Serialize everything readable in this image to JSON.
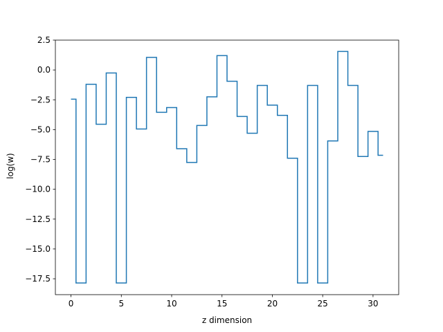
{
  "chart_data": {
    "type": "line",
    "drawstyle": "steps-mid",
    "title": "",
    "xlabel": "z dimension",
    "ylabel": "log(w)",
    "xlim": [
      -1.55,
      32.55
    ],
    "ylim": [
      -18.83,
      2.5
    ],
    "xticks": [
      0,
      5,
      10,
      15,
      20,
      25,
      30
    ],
    "yticks": [
      2.5,
      0.0,
      -2.5,
      -5.0,
      -7.5,
      -10.0,
      -12.5,
      -15.0,
      -17.5
    ],
    "grid": false,
    "legend": "none",
    "colors": {
      "series": "#1f77b4",
      "axes": "#000000",
      "background": "#ffffff"
    },
    "series": [
      {
        "x": [
          0,
          1,
          2,
          3,
          4,
          5,
          6,
          7,
          8,
          9,
          10,
          11,
          12,
          13,
          14,
          15,
          16,
          17,
          18,
          19,
          20,
          21,
          22,
          23,
          24,
          25,
          26,
          27,
          28,
          29,
          30,
          31
        ],
        "values": [
          -2.45,
          -17.85,
          -1.2,
          -4.55,
          -0.25,
          -17.85,
          -2.3,
          -4.95,
          1.05,
          -3.55,
          -3.15,
          -6.6,
          -7.75,
          -4.65,
          -2.25,
          1.2,
          -0.95,
          -3.9,
          -5.3,
          -1.3,
          -2.95,
          -3.8,
          -7.4,
          -17.85,
          -1.3,
          -17.85,
          -5.95,
          1.55,
          -1.3,
          -7.25,
          -5.15,
          -7.15
        ]
      }
    ]
  }
}
